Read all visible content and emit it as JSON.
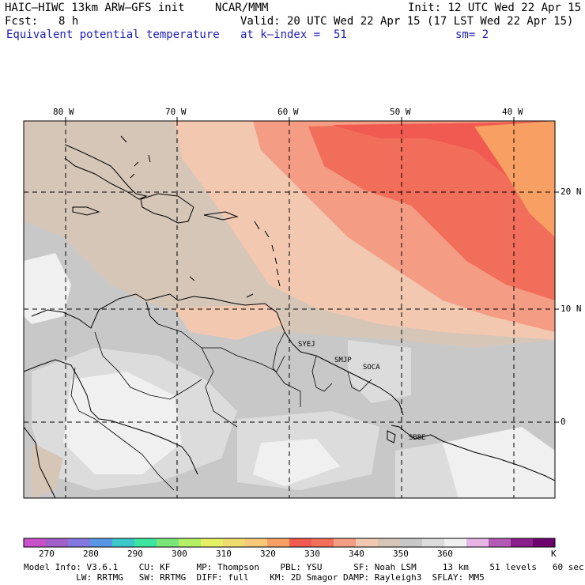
{
  "header": {
    "model": "HAIC–HIWC 13km ARW–GFS init",
    "org": "NCAR/MMM",
    "init": "Init: 12 UTC Wed 22 Apr 15",
    "fcst_label": "Fcst:",
    "fcst_value": "8 h",
    "valid": "Valid: 20 UTC Wed 22 Apr 15 (17 LST Wed 22 Apr 15)",
    "field": "Equivalent potential temperature",
    "level": "at k–index =  51",
    "smoothing": "sm= 2"
  },
  "map": {
    "lon_labels": [
      "80 W",
      "70 W",
      "60 W",
      "50 W",
      "40 W"
    ],
    "lat_labels": [
      "20 N",
      "10 N",
      "0"
    ],
    "stations": [
      "SYEJ",
      "SMJP",
      "SOCA",
      "SBBE"
    ]
  },
  "colorbar": {
    "ticks": [
      "270",
      "280",
      "290",
      "300",
      "310",
      "320",
      "330",
      "340",
      "350",
      "360"
    ],
    "unit": "K",
    "colors": [
      "#c850c8",
      "#a060c8",
      "#8278e0",
      "#5a96e6",
      "#3cc8c8",
      "#3ce6a0",
      "#78e678",
      "#b4f064",
      "#e6f064",
      "#f0dc6e",
      "#fac878",
      "#f8a064",
      "#f05a50",
      "#f06e5a",
      "#f49c84",
      "#f2c8b0",
      "#d6c6b8",
      "#c8c8c8",
      "#dcdcdc",
      "#f0f0f0",
      "#e6b4e6",
      "#b45ab4",
      "#8c1e8c",
      "#6e006e"
    ]
  },
  "footer": {
    "line1": "Model Info: V3.6.1    CU: KF     MP: Thompson    PBL: YSU      SF: Noah LSM     13 km    51 levels   60 sec",
    "line2": "          LW: RRTMG   SW: RRTMG  DIFF: full    KM: 2D Smagor DAMP: Rayleigh3  SFLAY: MM5"
  }
}
